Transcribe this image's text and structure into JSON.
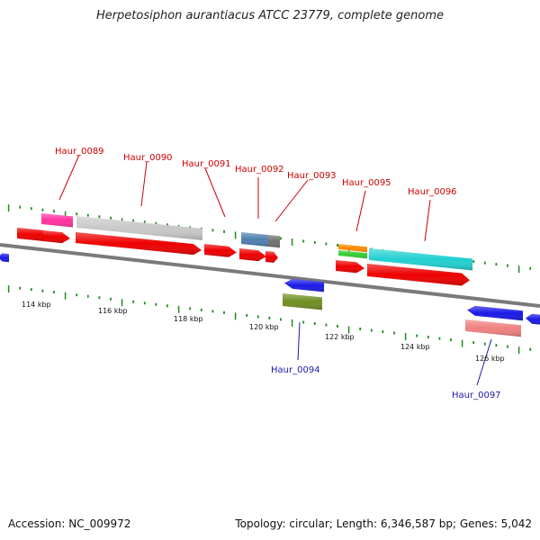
{
  "title": "Herpetosiphon aurantiacus ATCC 23779, complete genome",
  "accession": "Accession: NC_009972",
  "topology": "Topology: circular; Length: 6,346,587 bp; Genes: 5,042",
  "colors": {
    "backbone": "#7a7a7a",
    "tick": "#1f8a1f",
    "label_top": "#cc0000",
    "label_bottom": "#1a1aa6"
  },
  "scale_labels": [
    "114 kbp",
    "116 kbp",
    "118 kbp",
    "120 kbp",
    "122 kbp",
    "124 kbp",
    "126 kbp"
  ],
  "gene_labels": {
    "top": [
      "Haur_0089",
      "Haur_0090",
      "Haur_0091",
      "Haur_0092",
      "Haur_0093",
      "Haur_0095",
      "Haur_0096"
    ],
    "bottom": [
      "Haur_0094",
      "Haur_0097"
    ]
  }
}
